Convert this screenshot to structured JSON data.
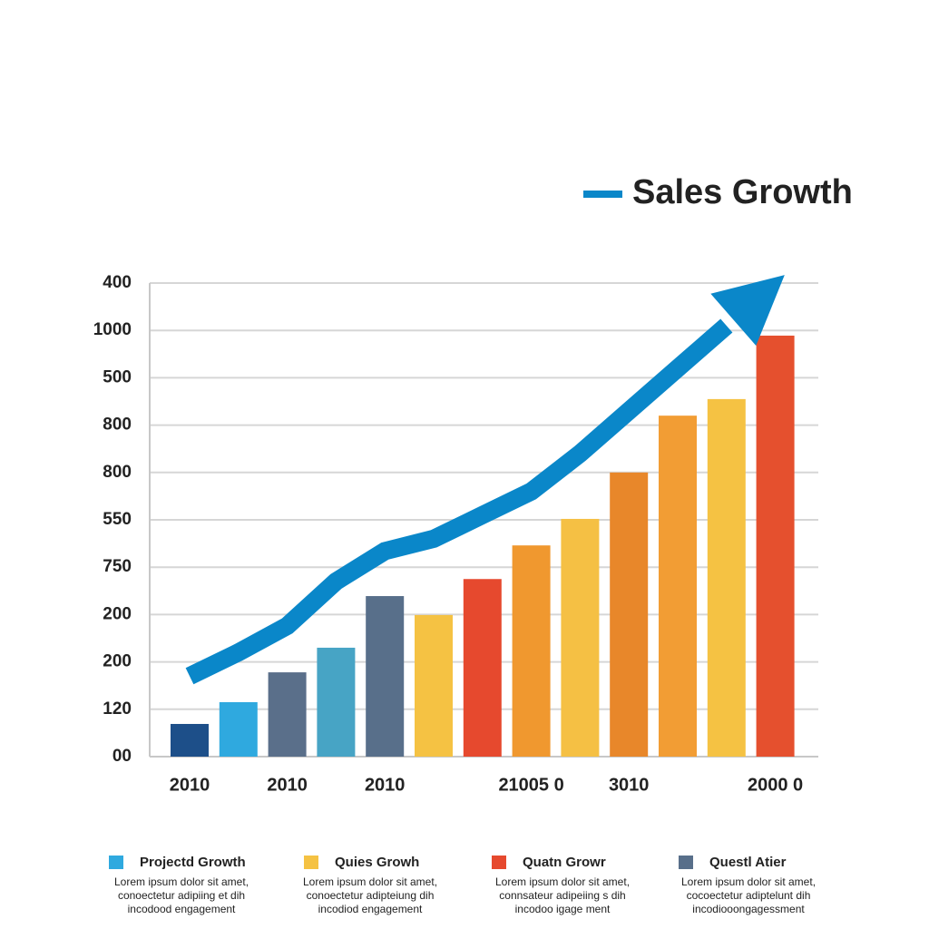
{
  "chart_data": {
    "type": "bar",
    "categories": [
      "2010",
      null,
      "2010",
      null,
      "2010",
      null,
      null,
      "21005 0",
      null,
      "3010",
      null,
      null,
      "2000 0"
    ],
    "values": [
      0.69,
      1.15,
      1.78,
      2.3,
      3.39,
      2.99,
      3.75,
      4.46,
      5.02,
      6.0,
      7.2,
      7.55,
      8.89
    ],
    "colors": [
      "#1d4f89",
      "#2fa9df",
      "#5a6f8a",
      "#47a4c5",
      "#586f8a",
      "#f5c243",
      "#e6492e",
      "#f0982f",
      "#f5c044",
      "#e8872a",
      "#f29d34",
      "#f5c243",
      "#e5502e"
    ],
    "ylim": [
      0,
      10
    ],
    "yticks": [
      {
        "value": 0,
        "label": "00"
      },
      {
        "value": 1,
        "label": "120"
      },
      {
        "value": 2,
        "label": "200"
      },
      {
        "value": 3,
        "label": "200"
      },
      {
        "value": 4,
        "label": "750"
      },
      {
        "value": 5,
        "label": "550"
      },
      {
        "value": 6,
        "label": "800"
      },
      {
        "value": 7,
        "label": "800"
      },
      {
        "value": 8,
        "label": "500"
      },
      {
        "value": 9,
        "label": "1000"
      },
      {
        "value": 10,
        "label": "400"
      }
    ],
    "grid": true,
    "line": {
      "name": "Sales Growth",
      "color": "#0a87c9",
      "values": [
        1.7,
        2.2,
        2.76,
        3.7,
        4.34,
        4.6,
        5.1,
        5.6,
        6.4,
        7.3,
        8.2,
        9.1,
        null
      ]
    },
    "legend_items": [
      {
        "name": "Projectd Growth",
        "color": "#2fa9df",
        "description": [
          "Lorem ipsum dolor sit amet,",
          "conoectetur adipiing et dih",
          "incodood engagement"
        ]
      },
      {
        "name": "Quies Growh",
        "color": "#f5c243",
        "description": [
          "Lorem ipsum dolor sit amet,",
          "conoectetur adipteiung dih",
          "incodiod engagement"
        ]
      },
      {
        "name": "Quatn Growr",
        "color": "#e6492e",
        "description": [
          "Lorem ipsum dolor sit amet,",
          "connsateur adipeiing s dih",
          "incodoo igage ment"
        ]
      },
      {
        "name": "Questl Atier",
        "color": "#586f8a",
        "description": [
          "Lorem ipsum dolor sit amet,",
          "cocoectetur adiptelunt dih",
          "incodiooongagessment"
        ]
      }
    ]
  }
}
